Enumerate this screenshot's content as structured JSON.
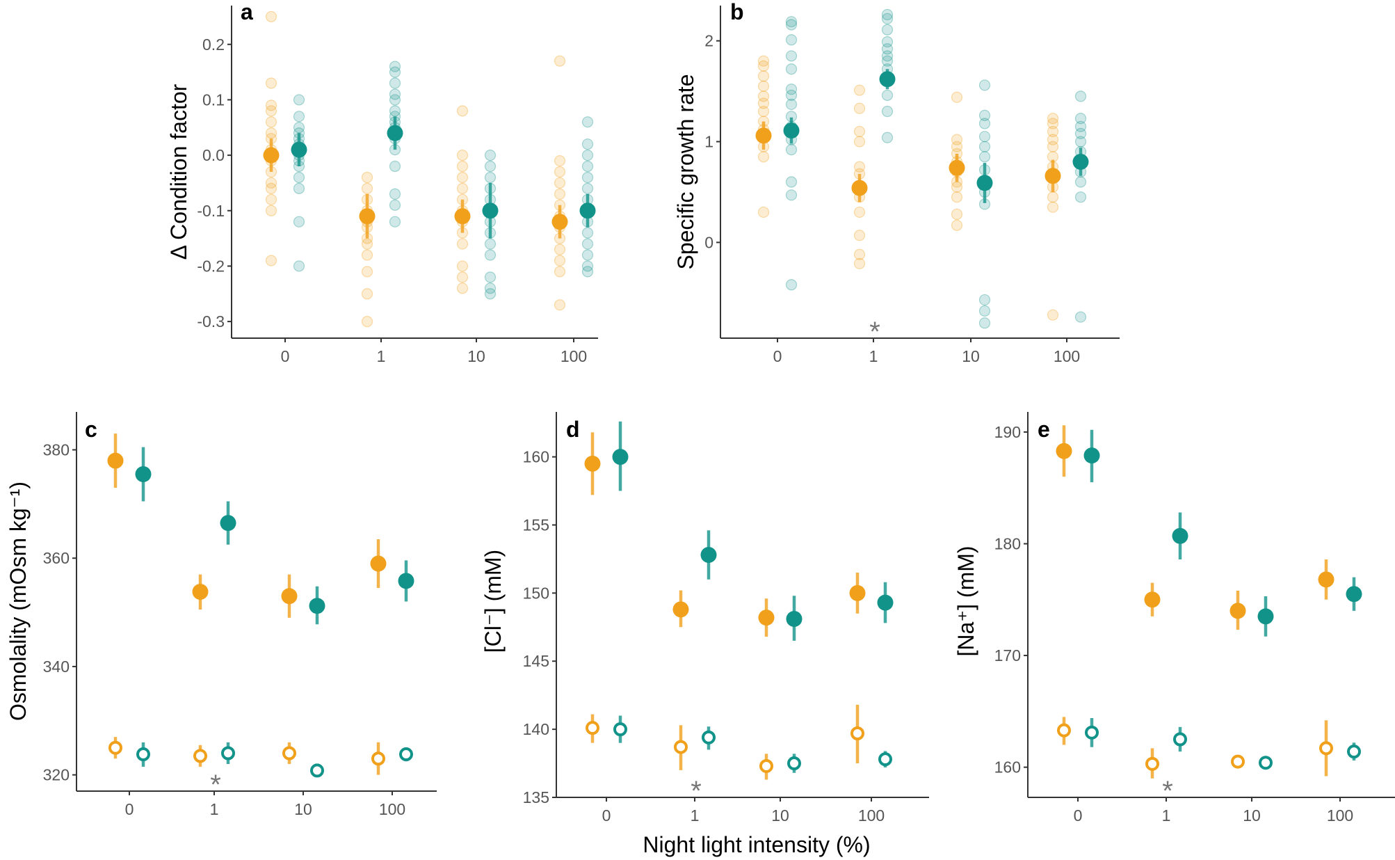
{
  "figure": {
    "xlabel": "Night light intensity (%)"
  },
  "colors": {
    "orange": "#F0A01A",
    "teal": "#12938A"
  },
  "chart_data": [
    {
      "type": "scatter",
      "panel": "a",
      "ylabel": "Δ Condition factor",
      "categories": [
        "0",
        "1",
        "10",
        "100"
      ],
      "ylim": [
        -0.33,
        0.27
      ],
      "yticks": [
        0.2,
        0.1,
        0.0,
        -0.1,
        -0.2,
        -0.3
      ],
      "ytick_labels": [
        "0.2",
        "0.1",
        "0.0",
        "-0.1",
        "-0.2",
        "-0.3"
      ],
      "series": [
        {
          "name": "orange",
          "style": "filled",
          "means": [
            0.0,
            -0.11,
            -0.11,
            -0.12
          ],
          "ci_low": [
            -0.03,
            -0.15,
            -0.14,
            -0.15
          ],
          "ci_high": [
            0.03,
            -0.07,
            -0.08,
            -0.09
          ],
          "raw": [
            [
              0.25,
              0.13,
              0.09,
              0.08,
              0.06,
              0.04,
              0.03,
              0.01,
              0.0,
              -0.01,
              -0.03,
              -0.05,
              -0.06,
              -0.08,
              -0.1,
              -0.19
            ],
            [
              -0.04,
              -0.06,
              -0.08,
              -0.1,
              -0.12,
              -0.13,
              -0.15,
              -0.16,
              -0.18,
              -0.21,
              -0.25,
              -0.3
            ],
            [
              0.08,
              0.0,
              -0.02,
              -0.04,
              -0.06,
              -0.08,
              -0.1,
              -0.12,
              -0.14,
              -0.16,
              -0.2,
              -0.22,
              -0.24
            ],
            [
              0.17,
              -0.01,
              -0.03,
              -0.05,
              -0.07,
              -0.09,
              -0.11,
              -0.13,
              -0.15,
              -0.17,
              -0.19,
              -0.21,
              -0.27
            ]
          ]
        },
        {
          "name": "teal",
          "style": "filled",
          "means": [
            0.01,
            0.04,
            -0.1,
            -0.1
          ],
          "ci_low": [
            -0.02,
            0.01,
            -0.15,
            -0.13
          ],
          "ci_high": [
            0.04,
            0.07,
            -0.05,
            -0.07
          ],
          "raw": [
            [
              0.1,
              0.07,
              0.05,
              0.04,
              0.03,
              0.02,
              0.01,
              0.0,
              -0.01,
              -0.02,
              -0.04,
              -0.06,
              -0.12,
              -0.2
            ],
            [
              0.16,
              0.15,
              0.13,
              0.11,
              0.1,
              0.08,
              0.07,
              0.06,
              0.05,
              0.03,
              0.01,
              -0.02,
              -0.07,
              -0.09,
              -0.12
            ],
            [
              0.0,
              -0.02,
              -0.04,
              -0.06,
              -0.08,
              -0.1,
              -0.12,
              -0.14,
              -0.16,
              -0.18,
              -0.22,
              -0.24,
              -0.25
            ],
            [
              0.06,
              0.02,
              0.0,
              -0.02,
              -0.04,
              -0.06,
              -0.08,
              -0.1,
              -0.12,
              -0.14,
              -0.16,
              -0.18,
              -0.2,
              -0.21
            ]
          ]
        }
      ]
    },
    {
      "type": "scatter",
      "panel": "b",
      "ylabel": "Specific growth rate",
      "categories": [
        "0",
        "1",
        "10",
        "100"
      ],
      "ylim": [
        -0.95,
        2.35
      ],
      "yticks": [
        2,
        1,
        0
      ],
      "ytick_labels": [
        "2",
        "1",
        "0"
      ],
      "significance": [
        "",
        "*",
        "",
        ""
      ],
      "series": [
        {
          "name": "orange",
          "style": "filled",
          "means": [
            1.06,
            0.54,
            0.74,
            0.66
          ],
          "ci_low": [
            0.92,
            0.4,
            0.6,
            0.5
          ],
          "ci_high": [
            1.2,
            0.68,
            0.88,
            0.82
          ],
          "raw": [
            [
              1.8,
              1.75,
              1.65,
              1.55,
              1.45,
              1.38,
              1.3,
              1.2,
              1.12,
              1.05,
              0.95,
              0.85,
              0.3
            ],
            [
              1.51,
              1.33,
              1.1,
              1.0,
              0.75,
              0.68,
              0.55,
              0.45,
              0.3,
              0.07,
              -0.12,
              -0.21
            ],
            [
              1.44,
              1.02,
              0.95,
              0.88,
              0.8,
              0.7,
              0.6,
              0.55,
              0.45,
              0.28,
              0.17
            ],
            [
              1.23,
              1.18,
              1.1,
              1.02,
              0.95,
              0.85,
              0.75,
              0.65,
              0.55,
              0.45,
              0.35,
              -0.72
            ]
          ]
        },
        {
          "name": "teal",
          "style": "filled",
          "means": [
            1.11,
            1.62,
            0.59,
            0.8
          ],
          "ci_low": [
            0.98,
            1.52,
            0.39,
            0.66
          ],
          "ci_high": [
            1.24,
            1.72,
            0.79,
            0.94
          ],
          "raw": [
            [
              2.19,
              2.16,
              2.01,
              1.85,
              1.72,
              1.52,
              1.46,
              1.37,
              1.25,
              1.15,
              1.02,
              0.92,
              0.6,
              0.47,
              -0.42
            ],
            [
              2.26,
              2.22,
              2.11,
              1.99,
              1.92,
              1.85,
              1.8,
              1.72,
              1.61,
              1.46,
              1.3,
              1.04
            ],
            [
              1.56,
              1.26,
              1.18,
              1.05,
              0.95,
              0.85,
              0.72,
              0.6,
              0.5,
              0.38,
              -0.57,
              -0.68,
              -0.8
            ],
            [
              1.45,
              1.23,
              1.15,
              1.08,
              1.0,
              0.9,
              0.8,
              0.7,
              0.6,
              0.45,
              -0.74
            ]
          ]
        }
      ]
    },
    {
      "type": "scatter",
      "panel": "c",
      "ylabel": "Osmolality (mOsm kg⁻¹)",
      "categories": [
        "0",
        "1",
        "10",
        "100"
      ],
      "ylim": [
        317,
        387
      ],
      "yticks": [
        380,
        360,
        340,
        320
      ],
      "ytick_labels": [
        "380",
        "360",
        "340",
        "320"
      ],
      "significance": [
        "",
        "*",
        "",
        ""
      ],
      "series": [
        {
          "name": "orange-filled",
          "style": "filled",
          "color": "orange",
          "means": [
            378.0,
            353.8,
            353.0,
            359.0
          ],
          "ci_low": [
            373.0,
            350.5,
            349.0,
            354.5
          ],
          "ci_high": [
            383.0,
            357.0,
            357.0,
            363.5
          ]
        },
        {
          "name": "teal-filled",
          "style": "filled",
          "color": "teal",
          "means": [
            375.5,
            366.5,
            351.2,
            355.8
          ],
          "ci_low": [
            370.5,
            362.5,
            347.8,
            352.0
          ],
          "ci_high": [
            380.5,
            370.5,
            354.8,
            359.6
          ]
        },
        {
          "name": "orange-open",
          "style": "open",
          "color": "orange",
          "means": [
            325.0,
            323.5,
            324.0,
            323.0
          ],
          "ci_low": [
            323.0,
            321.5,
            322.0,
            320.0
          ],
          "ci_high": [
            327.0,
            325.5,
            326.0,
            326.0
          ]
        },
        {
          "name": "teal-open",
          "style": "open",
          "color": "teal",
          "means": [
            323.8,
            324.0,
            320.8,
            323.8
          ],
          "ci_low": [
            321.5,
            322.0,
            320.0,
            322.5
          ],
          "ci_high": [
            326.0,
            326.0,
            321.5,
            325.0
          ]
        }
      ]
    },
    {
      "type": "scatter",
      "panel": "d",
      "ylabel": "[Cl⁻] (mM)",
      "categories": [
        "0",
        "1",
        "10",
        "100"
      ],
      "ylim": [
        135,
        163.3
      ],
      "yticks": [
        160,
        155,
        150,
        145,
        140,
        135
      ],
      "ytick_labels": [
        "160",
        "155",
        "150",
        "145",
        "140",
        "135"
      ],
      "significance": [
        "",
        "*",
        "",
        ""
      ],
      "series": [
        {
          "name": "orange-filled",
          "style": "filled",
          "color": "orange",
          "means": [
            159.5,
            148.8,
            148.2,
            150.0
          ],
          "ci_low": [
            157.2,
            147.5,
            146.8,
            148.5
          ],
          "ci_high": [
            161.8,
            150.2,
            149.6,
            151.5
          ]
        },
        {
          "name": "teal-filled",
          "style": "filled",
          "color": "teal",
          "means": [
            160.0,
            152.8,
            148.1,
            149.3
          ],
          "ci_low": [
            157.5,
            151.0,
            146.5,
            147.8
          ],
          "ci_high": [
            162.6,
            154.6,
            149.8,
            150.8
          ]
        },
        {
          "name": "orange-open",
          "style": "open",
          "color": "orange",
          "means": [
            140.1,
            138.7,
            137.3,
            139.7
          ],
          "ci_low": [
            139.0,
            137.0,
            136.3,
            137.5
          ],
          "ci_high": [
            141.1,
            140.3,
            138.2,
            141.8
          ]
        },
        {
          "name": "teal-open",
          "style": "open",
          "color": "teal",
          "means": [
            140.0,
            139.4,
            137.5,
            137.8
          ],
          "ci_low": [
            139.0,
            138.5,
            136.8,
            137.2
          ],
          "ci_high": [
            141.0,
            140.2,
            138.2,
            138.4
          ]
        }
      ]
    },
    {
      "type": "scatter",
      "panel": "e",
      "ylabel": "[Na⁺] (mM)",
      "categories": [
        "0",
        "1",
        "10",
        "100"
      ],
      "ylim": [
        157.3,
        191.8
      ],
      "yticks": [
        190,
        180,
        170,
        160
      ],
      "ytick_labels": [
        "190",
        "180",
        "170",
        "160"
      ],
      "significance": [
        "",
        "*",
        "",
        ""
      ],
      "series": [
        {
          "name": "orange-filled",
          "style": "filled",
          "color": "orange",
          "means": [
            188.3,
            175.0,
            174.0,
            176.8
          ],
          "ci_low": [
            186.0,
            173.5,
            172.3,
            175.0
          ],
          "ci_high": [
            190.6,
            176.5,
            175.8,
            178.6
          ]
        },
        {
          "name": "teal-filled",
          "style": "filled",
          "color": "teal",
          "means": [
            187.9,
            180.7,
            173.5,
            175.5
          ],
          "ci_low": [
            185.5,
            178.6,
            171.7,
            174.0
          ],
          "ci_high": [
            190.2,
            182.8,
            175.3,
            177.0
          ]
        },
        {
          "name": "orange-open",
          "style": "open",
          "color": "orange",
          "means": [
            163.3,
            160.3,
            160.5,
            161.7
          ],
          "ci_low": [
            162.0,
            159.0,
            160.0,
            159.2
          ],
          "ci_high": [
            164.5,
            161.7,
            161.0,
            164.2
          ]
        },
        {
          "name": "teal-open",
          "style": "open",
          "color": "teal",
          "means": [
            163.1,
            162.5,
            160.4,
            161.4
          ],
          "ci_low": [
            161.8,
            161.4,
            159.9,
            160.6
          ],
          "ci_high": [
            164.4,
            163.6,
            160.9,
            162.2
          ]
        }
      ]
    }
  ]
}
